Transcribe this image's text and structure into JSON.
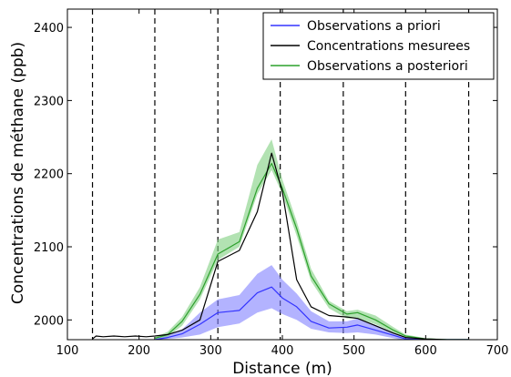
{
  "chart_data": {
    "type": "line",
    "title": "",
    "xlabel": "Distance (m)",
    "ylabel": "Concentrations de méthane (ppb)",
    "xlim": [
      100,
      700
    ],
    "ylim": [
      1973,
      2425
    ],
    "xticks": [
      100,
      200,
      300,
      400,
      500,
      600,
      700
    ],
    "yticks": [
      2000,
      2100,
      2200,
      2300,
      2400
    ],
    "grid": false,
    "legend_position": "top-right",
    "vertical_dashed_lines_x": [
      135,
      222,
      310,
      397,
      485,
      572,
      660
    ],
    "series": [
      {
        "name": "Observations a priori",
        "color": "#3333ff",
        "band_color": "#8080ff",
        "x": [
          222,
          240,
          260,
          285,
          310,
          340,
          365,
          385,
          400,
          420,
          440,
          465,
          490,
          505,
          530,
          555,
          572,
          600,
          630,
          660
        ],
        "y": [
          1973,
          1976,
          1981,
          1994,
          2010,
          2013,
          2037,
          2045,
          2030,
          2018,
          1998,
          1989,
          1990,
          1993,
          1986,
          1979,
          1974,
          1973,
          1973,
          1973
        ],
        "lower": [
          1973,
          1974,
          1976,
          1980,
          1990,
          1995,
          2010,
          2016,
          2008,
          2000,
          1988,
          1983,
          1982,
          1983,
          1980,
          1975,
          1972,
          1972,
          1972,
          1972
        ],
        "upper": [
          1975,
          1979,
          1987,
          2010,
          2028,
          2034,
          2063,
          2075,
          2055,
          2036,
          2012,
          1998,
          1998,
          2002,
          1993,
          1983,
          1976,
          1974,
          1974,
          1974
        ]
      },
      {
        "name": "Concentrations mesurees",
        "color": "#000000",
        "x": [
          135,
          140,
          150,
          165,
          180,
          195,
          210,
          222,
          240,
          260,
          285,
          310,
          340,
          365,
          385,
          400,
          420,
          440,
          465,
          490,
          505,
          530,
          555,
          572,
          600,
          630,
          660
        ],
        "y": [
          1974,
          1978,
          1977,
          1978,
          1977,
          1978,
          1977,
          1978,
          1980,
          1986,
          2000,
          2080,
          2095,
          2148,
          2228,
          2175,
          2055,
          2018,
          2006,
          2004,
          2002,
          1992,
          1982,
          1976,
          1974,
          1973,
          1973
        ]
      },
      {
        "name": "Observations a posteriori",
        "color": "#2ca02c",
        "band_color": "#7fcf7f",
        "x": [
          222,
          240,
          260,
          285,
          310,
          340,
          365,
          385,
          400,
          420,
          440,
          465,
          490,
          505,
          530,
          555,
          572,
          600,
          630,
          660
        ],
        "y": [
          1975,
          1980,
          1998,
          2035,
          2090,
          2107,
          2180,
          2214,
          2180,
          2125,
          2060,
          2022,
          2008,
          2010,
          2000,
          1986,
          1978,
          1974,
          1973,
          1973
        ],
        "lower": [
          1974,
          1977,
          1992,
          2028,
          2082,
          2100,
          2172,
          2205,
          2172,
          2115,
          2053,
          2016,
          2002,
          2002,
          1994,
          1983,
          1976,
          1973,
          1972,
          1972
        ],
        "upper": [
          1976,
          1984,
          2004,
          2045,
          2110,
          2120,
          2212,
          2247,
          2192,
          2135,
          2070,
          2026,
          2012,
          2014,
          2006,
          1990,
          1980,
          1975,
          1974,
          1974
        ]
      }
    ]
  }
}
